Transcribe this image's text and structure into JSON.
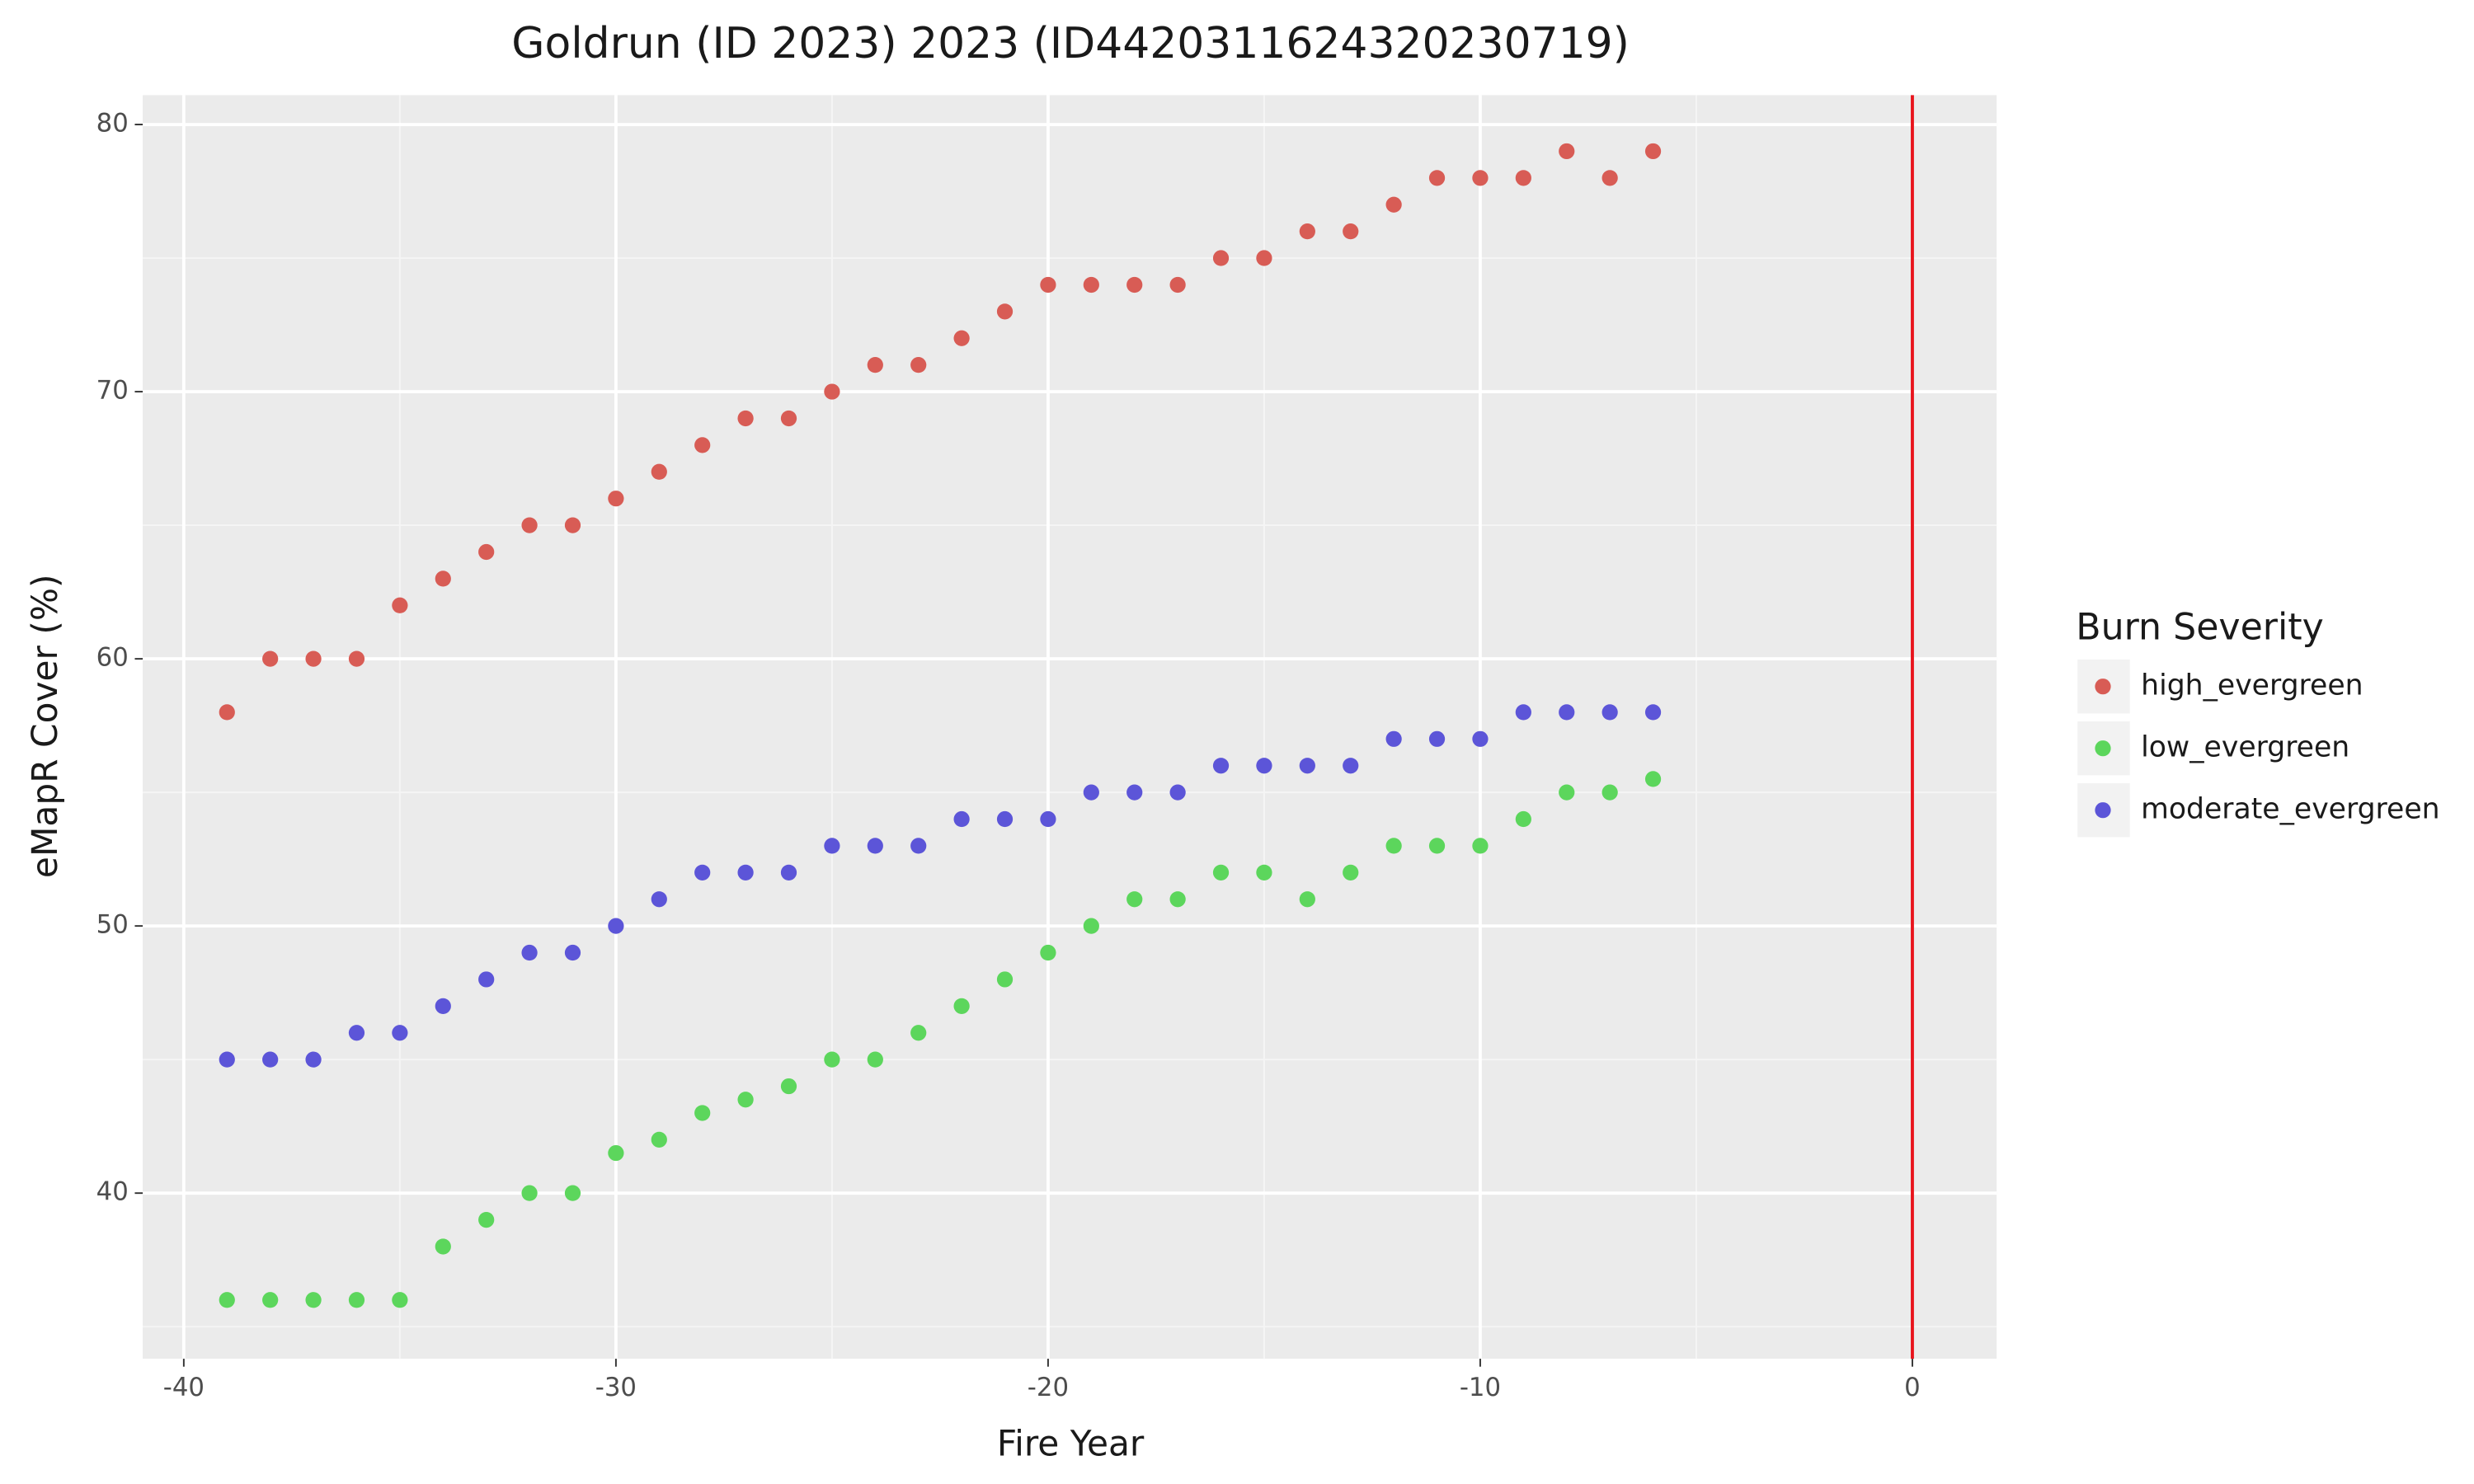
{
  "chart_data": {
    "type": "scatter",
    "title": "Goldrun (ID 2023) 2023 (ID44203116243202307​19)",
    "x_label": "Fire Year",
    "y_label": "eMapR Cover (%)",
    "legend_title": "Burn Severity",
    "legend_position": "right",
    "grid": true,
    "xlim": [
      -40.95,
      1.95
    ],
    "ylim": [
      33.8,
      81.1
    ],
    "xticks": [
      -40,
      -30,
      -20,
      -10,
      0
    ],
    "yticks": [
      40,
      50,
      60,
      70,
      80
    ],
    "x_minor_breaks": [
      -35,
      -25,
      -15,
      -5
    ],
    "y_minor_breaks": [
      35,
      45,
      55,
      65,
      75
    ],
    "vline": {
      "x": 0,
      "color": "#e8141c"
    },
    "x": [
      -39,
      -38,
      -37,
      -36,
      -35,
      -34,
      -33,
      -32,
      -31,
      -30,
      -29,
      -28,
      -27,
      -26,
      -25,
      -24,
      -23,
      -22,
      -21,
      -20,
      -19,
      -18,
      -17,
      -16,
      -15,
      -14,
      -13,
      -12,
      -11,
      -10,
      -9,
      -8,
      -7,
      -6
    ],
    "series": [
      {
        "name": "high_evergreen",
        "color": "#d85c55",
        "values": [
          58,
          60,
          60,
          60,
          62,
          63,
          64,
          65,
          65,
          66,
          67,
          68,
          69,
          69,
          70,
          71,
          71,
          72,
          73,
          74,
          74,
          74,
          74,
          75,
          75,
          76,
          76,
          77,
          78,
          78,
          78,
          79,
          78,
          79
        ]
      },
      {
        "name": "low_evergreen",
        "color": "#5cd65c",
        "values": [
          36,
          36,
          36,
          36,
          36,
          38,
          39,
          40,
          40,
          41.5,
          42,
          43,
          43.5,
          44,
          45,
          45,
          46,
          47,
          48,
          49,
          50,
          51,
          51,
          52,
          52,
          51,
          52,
          53,
          53,
          53,
          54,
          55,
          55,
          55.5
        ]
      },
      {
        "name": "moderate_evergreen",
        "color": "#5c55d8",
        "values": [
          45,
          45,
          45,
          46,
          46,
          47,
          48,
          49,
          49,
          50,
          51,
          52,
          52,
          52,
          53,
          53,
          53,
          54,
          54,
          54,
          55,
          55,
          55,
          56,
          56,
          56,
          56,
          57,
          57,
          57,
          58,
          58,
          58,
          58
        ]
      }
    ]
  }
}
